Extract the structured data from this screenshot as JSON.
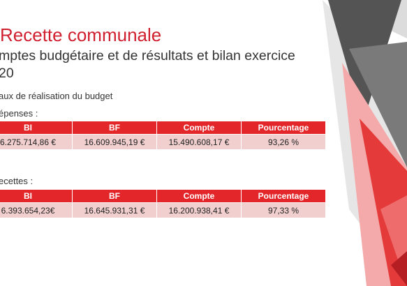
{
  "slide": {
    "title": "Recette communale",
    "subtitle_line1": "mptes budgétaire et de résultats et bilan exercice",
    "subtitle_line2": "20",
    "section": "aux de réalisation du budget",
    "depenses": {
      "label": "épenses :",
      "headers": [
        "BI",
        "BF",
        "Compte",
        "Pourcentage"
      ],
      "row": [
        "6.275.714,86 €",
        "16.609.945,19 €",
        "15.490.608,17 €",
        "93,26 %"
      ]
    },
    "recettes": {
      "label": "ecettes :",
      "headers": [
        "BI",
        "BF",
        "Compte",
        "Pourcentage"
      ],
      "row": [
        "6.393.654,23€",
        "16.645.931,31 €",
        "16.200.938,41 €",
        "97,33 %"
      ]
    }
  },
  "colors": {
    "accent": "#d01f2e",
    "header_bg": "#e32629",
    "cell_bg": "#f2cfcf",
    "text": "#333333"
  }
}
